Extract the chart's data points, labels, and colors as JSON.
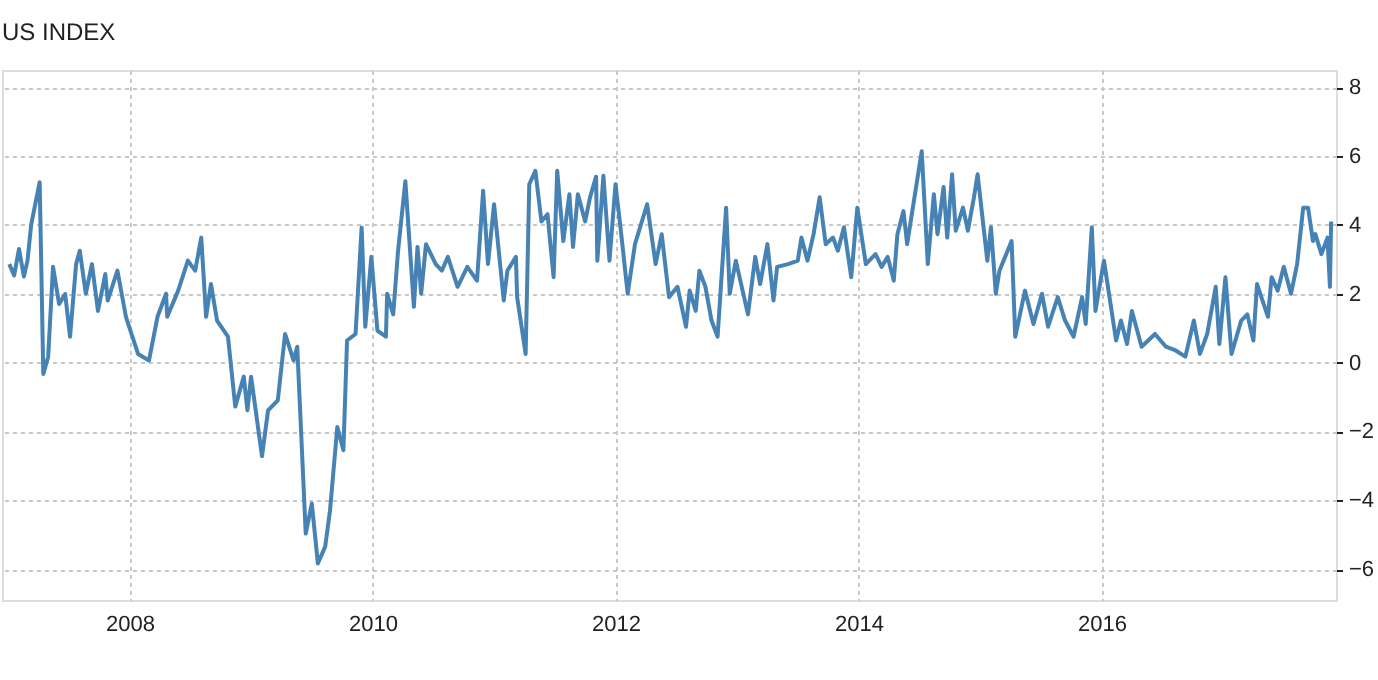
{
  "chart_data": {
    "type": "line",
    "title": "US INDEX",
    "x": [
      2007.01,
      2007.05,
      2007.09,
      2007.13,
      2007.16,
      2007.19,
      2007.26,
      2007.29,
      2007.33,
      2007.37,
      2007.42,
      2007.47,
      2007.51,
      2007.56,
      2007.59,
      2007.64,
      2007.69,
      2007.74,
      2007.8,
      2007.82,
      2007.9,
      2007.97,
      2008.07,
      2008.16,
      2008.23,
      2008.3,
      2008.31,
      2008.4,
      2008.48,
      2008.54,
      2008.59,
      2008.63,
      2008.67,
      2008.72,
      2008.81,
      2008.87,
      2008.94,
      2008.97,
      2009.0,
      2009.09,
      2009.14,
      2009.22,
      2009.28,
      2009.35,
      2009.38,
      2009.45,
      2009.5,
      2009.55,
      2009.61,
      2009.65,
      2009.71,
      2009.76,
      2009.79,
      2009.86,
      2009.91,
      2009.94,
      2009.99,
      2010.04,
      2010.11,
      2010.12,
      2010.17,
      2010.21,
      2010.27,
      2010.34,
      2010.37,
      2010.4,
      2010.44,
      2010.52,
      2010.57,
      2010.62,
      2010.7,
      2010.78,
      2010.86,
      2010.91,
      2010.95,
      2011.0,
      2011.08,
      2011.11,
      2011.18,
      2011.19,
      2011.26,
      2011.29,
      2011.34,
      2011.39,
      2011.44,
      2011.49,
      2011.52,
      2011.57,
      2011.62,
      2011.65,
      2011.69,
      2011.75,
      2011.79,
      2011.84,
      2011.85,
      2011.9,
      2011.95,
      2012.0,
      2012.05,
      2012.1,
      2012.16,
      2012.26,
      2012.33,
      2012.38,
      2012.44,
      2012.51,
      2012.58,
      2012.61,
      2012.66,
      2012.69,
      2012.74,
      2012.79,
      2012.84,
      2012.91,
      2012.94,
      2012.99,
      2013.09,
      2013.15,
      2013.19,
      2013.25,
      2013.3,
      2013.33,
      2013.42,
      2013.5,
      2013.53,
      2013.58,
      2013.63,
      2013.68,
      2013.73,
      2013.79,
      2013.83,
      2013.88,
      2013.94,
      2013.99,
      2014.06,
      2014.14,
      2014.19,
      2014.24,
      2014.29,
      2014.32,
      2014.37,
      2014.4,
      2014.52,
      2014.57,
      2014.62,
      2014.65,
      2014.7,
      2014.73,
      2014.77,
      2014.8,
      2014.86,
      2014.9,
      2014.95,
      2014.98,
      2015.06,
      2015.09,
      2015.13,
      2015.16,
      2015.26,
      2015.29,
      2015.37,
      2015.44,
      2015.51,
      2015.56,
      2015.64,
      2015.7,
      2015.77,
      2015.84,
      2015.87,
      2015.92,
      2015.95,
      2016.02,
      2016.12,
      2016.16,
      2016.21,
      2016.25,
      2016.33,
      2016.44,
      2016.53,
      2016.61,
      2016.69,
      2016.76,
      2016.81,
      2016.87,
      2016.94,
      2016.97,
      2017.02,
      2017.07,
      2017.15,
      2017.2,
      2017.25,
      2017.28,
      2017.37,
      2017.4,
      2017.45,
      2017.5,
      2017.56,
      2017.61,
      2017.66,
      2017.7,
      2017.74,
      2017.76,
      2017.81,
      2017.86,
      2017.88,
      2017.89
    ],
    "series": [
      {
        "color": "#4682b4",
        "values": [
          2.86,
          2.53,
          3.3,
          2.5,
          2.96,
          4.0,
          5.24,
          -0.33,
          0.17,
          2.78,
          1.7,
          1.99,
          0.75,
          2.86,
          3.25,
          2.0,
          2.86,
          1.5,
          2.57,
          1.8,
          2.67,
          1.33,
          0.25,
          0.06,
          1.33,
          2.0,
          1.33,
          2.09,
          2.96,
          2.67,
          3.63,
          1.33,
          2.28,
          1.22,
          0.75,
          -1.28,
          -0.41,
          -1.39,
          -0.41,
          -2.72,
          -1.39,
          -1.1,
          0.83,
          0.06,
          0.46,
          -4.97,
          -4.1,
          -5.84,
          -5.35,
          -4.29,
          -1.87,
          -2.55,
          0.64,
          0.83,
          3.92,
          1.04,
          3.07,
          0.93,
          0.75,
          2.0,
          1.4,
          3.25,
          5.27,
          1.62,
          3.36,
          2.0,
          3.44,
          2.86,
          2.67,
          3.07,
          2.2,
          2.78,
          2.38,
          4.99,
          2.86,
          4.6,
          1.8,
          2.67,
          3.07,
          1.9,
          0.25,
          5.18,
          5.57,
          4.1,
          4.31,
          2.48,
          5.57,
          3.53,
          4.89,
          3.36,
          4.89,
          4.1,
          4.8,
          5.4,
          2.96,
          5.43,
          2.96,
          5.18,
          3.63,
          2.0,
          3.44,
          4.6,
          2.86,
          3.73,
          1.9,
          2.2,
          1.04,
          2.09,
          1.5,
          2.67,
          2.2,
          1.22,
          0.75,
          4.5,
          2.0,
          2.96,
          1.4,
          3.07,
          2.28,
          3.44,
          1.8,
          2.78,
          2.86,
          2.96,
          3.63,
          2.96,
          3.73,
          4.8,
          3.44,
          3.63,
          3.25,
          3.93,
          2.48,
          4.5,
          2.86,
          3.15,
          2.78,
          3.07,
          2.38,
          3.73,
          4.4,
          3.44,
          6.14,
          2.86,
          4.89,
          3.73,
          5.1,
          3.63,
          5.47,
          3.83,
          4.5,
          3.83,
          4.8,
          5.47,
          2.96,
          3.93,
          2.0,
          2.67,
          3.53,
          0.75,
          2.09,
          1.12,
          2.0,
          1.04,
          1.9,
          1.22,
          0.75,
          1.9,
          1.12,
          3.93,
          1.5,
          2.96,
          0.64,
          1.22,
          0.54,
          1.5,
          0.46,
          0.83,
          0.46,
          0.35,
          0.17,
          1.22,
          0.25,
          0.83,
          2.2,
          0.54,
          2.48,
          0.25,
          1.22,
          1.4,
          0.64,
          2.28,
          1.33,
          2.48,
          2.09,
          2.78,
          2.0,
          2.86,
          4.5,
          4.5,
          3.53,
          3.73,
          3.15,
          3.63,
          2.2,
          4.1
        ]
      }
    ],
    "xlim": [
      2006.95,
      2017.93
    ],
    "xticks": [
      2008,
      2010,
      2012,
      2014,
      2016
    ],
    "ylim": [
      -6.9,
      8.5
    ],
    "yticks": [
      -6,
      -4,
      -2,
      0,
      2,
      4,
      6,
      8
    ],
    "grid": true
  }
}
